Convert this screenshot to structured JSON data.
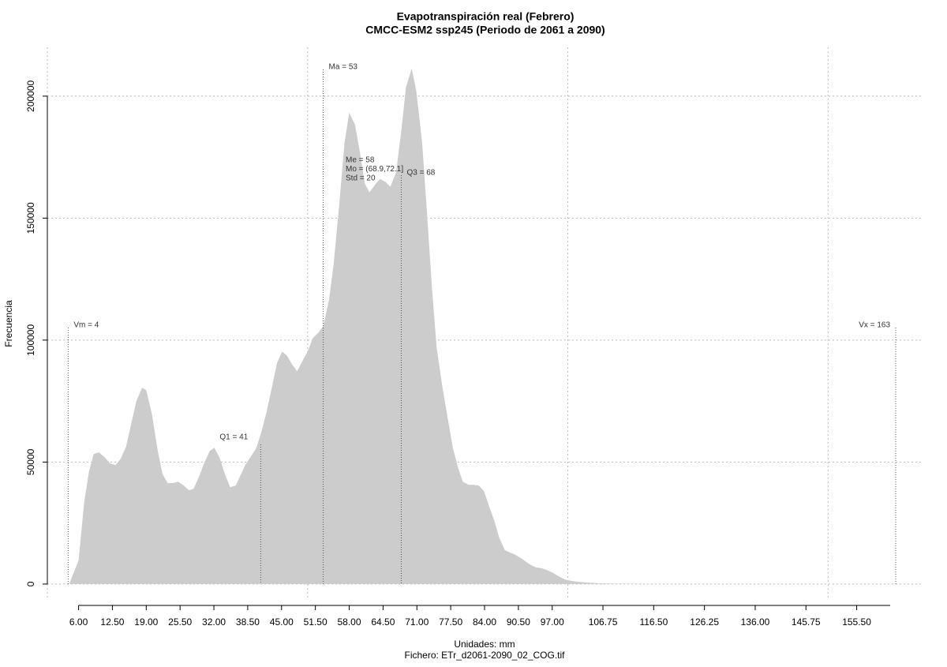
{
  "chart_data": {
    "type": "area",
    "title": "Evapotranspiración real (Febrero)",
    "subtitle": "CMCC-ESM2 ssp245 (Periodo de 2061 a 2090)",
    "y_label": "Frecuencia",
    "x_label": "Unidades: mm",
    "caption": "Fichero: ETr_d2061-2090_02_COG.tif",
    "color": "#cccccc",
    "grid": true,
    "xgrid": [
      0,
      50,
      100,
      150
    ],
    "xlim": [
      0,
      168
    ],
    "ylim": [
      -6500,
      220000
    ],
    "yticks": [
      0,
      50000,
      100000,
      150000,
      200000
    ],
    "xticks": [
      {
        "value": 6,
        "label": "6.00"
      },
      {
        "value": 12.5,
        "label": "12.50"
      },
      {
        "value": 19,
        "label": "19.00"
      },
      {
        "value": 25.5,
        "label": "25.50"
      },
      {
        "value": 32,
        "label": "32.00"
      },
      {
        "value": 38.5,
        "label": "38.50"
      },
      {
        "value": 45,
        "label": "45.00"
      },
      {
        "value": 51.5,
        "label": "51.50"
      },
      {
        "value": 58,
        "label": "58.00"
      },
      {
        "value": 64.5,
        "label": "64.50"
      },
      {
        "value": 71,
        "label": "71.00"
      },
      {
        "value": 77.5,
        "label": "77.50"
      },
      {
        "value": 84,
        "label": "84.00"
      },
      {
        "value": 90.5,
        "label": "90.50"
      },
      {
        "value": 97,
        "label": "97.00"
      },
      {
        "value": 106.75,
        "label": "106.75"
      },
      {
        "value": 116.5,
        "label": "116.50"
      },
      {
        "value": 126.25,
        "label": "126.25"
      },
      {
        "value": 136,
        "label": "136.00"
      },
      {
        "value": 145.75,
        "label": "145.75"
      },
      {
        "value": 155.5,
        "label": "155.50"
      }
    ],
    "x": [
      4.2,
      6,
      7.1,
      8,
      8.9,
      9.9,
      11,
      12.1,
      13.1,
      14,
      15.1,
      16,
      17.1,
      18.2,
      19,
      20.1,
      21.2,
      22.1,
      23.1,
      24.2,
      25.1,
      26.2,
      27.2,
      28.1,
      29.2,
      30.1,
      31.2,
      32.1,
      33.1,
      34.1,
      35.1,
      36.2,
      37.1,
      38.1,
      39.1,
      40.1,
      41,
      42.1,
      43,
      44.1,
      45.1,
      46,
      47.1,
      48,
      49.1,
      50,
      51,
      52.1,
      53,
      54.1,
      55,
      56,
      57.1,
      58,
      59.1,
      60,
      61,
      61.9,
      63,
      63.9,
      65,
      65.9,
      67,
      68,
      68.9,
      70,
      70.9,
      72,
      72.9,
      73.9,
      74.8,
      75.9,
      76.8,
      77.9,
      78.9,
      79.8,
      80.9,
      81.8,
      82.9,
      83.9,
      84.8,
      85.9,
      86.8,
      87.9,
      88.9,
      89.9,
      90.9,
      91.8,
      92.9,
      93.9,
      94.9,
      95.9,
      97,
      97.9,
      99,
      99.9,
      101.5,
      103.8,
      106.1,
      111.4,
      119.7,
      162.2
    ],
    "values": [
      0,
      9700,
      33900,
      46200,
      53300,
      54000,
      52000,
      49400,
      48800,
      51000,
      56200,
      64600,
      75000,
      80500,
      79500,
      69500,
      54900,
      45200,
      41400,
      41400,
      42000,
      40400,
      38400,
      39100,
      44300,
      49400,
      54600,
      55900,
      51700,
      45200,
      39700,
      40400,
      44600,
      49100,
      52300,
      55600,
      61400,
      70400,
      79200,
      90500,
      95300,
      93700,
      89800,
      87200,
      91800,
      95300,
      100800,
      103100,
      105700,
      116300,
      130900,
      153500,
      180900,
      193200,
      188400,
      177700,
      164100,
      160600,
      163800,
      166100,
      164800,
      162800,
      168700,
      185800,
      203600,
      211300,
      201900,
      180900,
      153500,
      121200,
      96900,
      80800,
      69500,
      55900,
      47800,
      42000,
      40700,
      40700,
      40400,
      38100,
      32300,
      25800,
      19100,
      13900,
      12900,
      12000,
      10700,
      9400,
      7800,
      6800,
      6500,
      5800,
      4800,
      3600,
      2300,
      1600,
      1000,
      600,
      300,
      100,
      0,
      0
    ],
    "markers": [
      {
        "label": "Vm = 4",
        "value": 4
      },
      {
        "label": "Q1 = 41",
        "value": 41
      },
      {
        "label": "Ma = 53",
        "value": 53
      },
      {
        "label": "Q3 = 68",
        "value": 68
      },
      {
        "label": "Vx = 163",
        "value": 163
      }
    ],
    "notes": [
      "Me = 58",
      "Mo = (68.9,72.1]",
      "Std = 20"
    ]
  }
}
